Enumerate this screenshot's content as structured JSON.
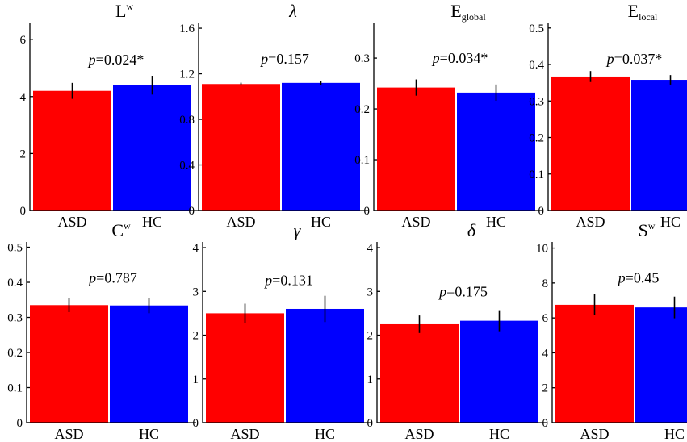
{
  "chart_data": [
    {
      "type": "bar",
      "title": "L",
      "title_sup": "w",
      "title_sub": "",
      "title_italic": false,
      "categories": [
        "ASD",
        "HC"
      ],
      "values": [
        4.2,
        4.4
      ],
      "errors": [
        0.28,
        0.33
      ],
      "colors": [
        "#ff0000",
        "#0000ff"
      ],
      "ylim": [
        0,
        6.6
      ],
      "yticks": [
        0,
        2,
        4,
        6
      ],
      "ytick_labels": [
        "0",
        "2",
        "4",
        "6"
      ],
      "p_italic": "p",
      "p_text": "=0.024*",
      "p_value_y": 5.3
    },
    {
      "type": "bar",
      "title": "λ",
      "title_sup": "",
      "title_sub": "",
      "title_italic": true,
      "categories": [
        "ASD",
        "HC"
      ],
      "values": [
        1.11,
        1.12
      ],
      "errors": [
        0.012,
        0.02
      ],
      "colors": [
        "#ff0000",
        "#0000ff"
      ],
      "ylim": [
        0,
        1.65
      ],
      "yticks": [
        0,
        0.4,
        0.8,
        1.2,
        1.6
      ],
      "ytick_labels": [
        "0",
        "0.4",
        "0.8",
        "1.2",
        "1.6"
      ],
      "p_italic": "p",
      "p_text": "=0.157",
      "p_value_y": 1.33
    },
    {
      "type": "bar",
      "title": "E",
      "title_sup": "",
      "title_sub": "global",
      "title_italic": false,
      "categories": [
        "ASD",
        "HC"
      ],
      "values": [
        0.242,
        0.232
      ],
      "errors": [
        0.016,
        0.016
      ],
      "colors": [
        "#ff0000",
        "#0000ff"
      ],
      "ylim": [
        0,
        0.37
      ],
      "yticks": [
        0,
        0.1,
        0.2,
        0.3
      ],
      "ytick_labels": [
        "0",
        "0.1",
        "0.2",
        "0.3"
      ],
      "p_italic": "p",
      "p_text": "=0.034*",
      "p_value_y": 0.3
    },
    {
      "type": "bar",
      "title": "E",
      "title_sup": "",
      "title_sub": "local",
      "title_italic": false,
      "categories": [
        "ASD",
        "HC"
      ],
      "values": [
        0.367,
        0.358
      ],
      "errors": [
        0.015,
        0.013
      ],
      "colors": [
        "#ff0000",
        "#0000ff"
      ],
      "ylim": [
        0,
        0.515
      ],
      "yticks": [
        0,
        0.1,
        0.2,
        0.3,
        0.4,
        0.5
      ],
      "ytick_labels": [
        "0",
        "0.1",
        "0.2",
        "0.3",
        "0.4",
        "0.5"
      ],
      "p_italic": "p",
      "p_text": "=0.037*",
      "p_value_y": 0.415
    },
    {
      "type": "bar",
      "title": "C",
      "title_sup": "w",
      "title_sub": "",
      "title_italic": false,
      "categories": [
        "ASD",
        "HC"
      ],
      "values": [
        0.335,
        0.334
      ],
      "errors": [
        0.02,
        0.022
      ],
      "colors": [
        "#ff0000",
        "#0000ff"
      ],
      "ylim": [
        0,
        0.515
      ],
      "yticks": [
        0,
        0.1,
        0.2,
        0.3,
        0.4,
        0.5
      ],
      "ytick_labels": [
        "0",
        "0.1",
        "0.2",
        "0.3",
        "0.4",
        "0.5"
      ],
      "p_italic": "p",
      "p_text": "=0.787",
      "p_value_y": 0.413
    },
    {
      "type": "bar",
      "title": "γ",
      "title_sup": "",
      "title_sub": "",
      "title_italic": true,
      "categories": [
        "ASD",
        "HC"
      ],
      "values": [
        2.5,
        2.6
      ],
      "errors": [
        0.22,
        0.3
      ],
      "colors": [
        "#ff0000",
        "#0000ff"
      ],
      "ylim": [
        0,
        4.13
      ],
      "yticks": [
        0,
        1,
        2,
        3,
        4
      ],
      "ytick_labels": [
        "0",
        "1",
        "2",
        "3",
        "4"
      ],
      "p_italic": "p",
      "p_text": "=0.131",
      "p_value_y": 3.25
    },
    {
      "type": "bar",
      "title": "δ",
      "title_sup": "",
      "title_sub": "",
      "title_italic": true,
      "categories": [
        "ASD",
        "HC"
      ],
      "values": [
        2.25,
        2.33
      ],
      "errors": [
        0.2,
        0.24
      ],
      "colors": [
        "#ff0000",
        "#0000ff"
      ],
      "ylim": [
        0,
        4.13
      ],
      "yticks": [
        0,
        1,
        2,
        3,
        4
      ],
      "ytick_labels": [
        "0",
        "1",
        "2",
        "3",
        "4"
      ],
      "p_italic": "p",
      "p_text": "=0.175",
      "p_value_y": 3.0
    },
    {
      "type": "bar",
      "title": "S",
      "title_sup": "w",
      "title_sub": "",
      "title_italic": false,
      "categories": [
        "ASD",
        "HC"
      ],
      "values": [
        6.75,
        6.6
      ],
      "errors": [
        0.6,
        0.62
      ],
      "colors": [
        "#ff0000",
        "#0000ff"
      ],
      "ylim": [
        0,
        10.35
      ],
      "yticks": [
        0,
        2,
        4,
        6,
        8,
        10
      ],
      "ytick_labels": [
        "0",
        "2",
        "4",
        "6",
        "8",
        "10"
      ],
      "p_italic": "p",
      "p_text": "=0.45",
      "p_value_y": 8.3
    }
  ]
}
